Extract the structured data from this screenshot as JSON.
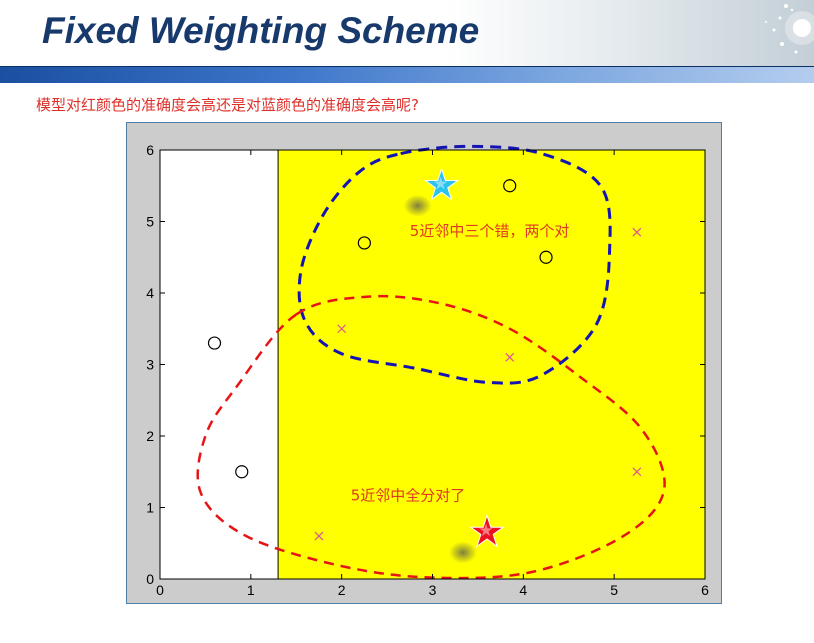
{
  "header": {
    "title": "Fixed Weighting Scheme",
    "subtitle": "模型对红颜色的准确度会高还是对蓝颜色的准确度会高呢?"
  },
  "chart_data": {
    "type": "scatter",
    "xlim": [
      0,
      6
    ],
    "ylim": [
      0,
      6
    ],
    "xticks": [
      "0",
      "1",
      "2",
      "3",
      "4",
      "5",
      "6"
    ],
    "yticks": [
      "0",
      "1",
      "2",
      "3",
      "4",
      "5",
      "6"
    ],
    "grid": false,
    "decision_boundary_x": 1.3,
    "region_colors": {
      "left": "#ffffff",
      "right": "#ffff00"
    },
    "series": [
      {
        "marker": "circle",
        "color": "#000000",
        "points": [
          [
            0.6,
            3.3
          ],
          [
            0.9,
            1.5
          ],
          [
            2.25,
            4.7
          ],
          [
            3.85,
            5.5
          ],
          [
            4.25,
            4.5
          ]
        ]
      },
      {
        "marker": "x",
        "color": "#e0509a",
        "points": [
          [
            2.0,
            3.5
          ],
          [
            3.85,
            3.1
          ],
          [
            5.25,
            4.85
          ],
          [
            5.25,
            1.5
          ],
          [
            1.75,
            0.6
          ]
        ]
      }
    ],
    "query_points": [
      {
        "marker": "star",
        "color": "#29c3ee",
        "point": [
          3.1,
          5.5
        ]
      },
      {
        "marker": "star",
        "color": "#ee1020",
        "point": [
          3.6,
          0.65
        ]
      }
    ],
    "neighborhoods": [
      {
        "color": "#1414b4",
        "style": "dashed"
      },
      {
        "color": "#e61414",
        "style": "dashed"
      }
    ],
    "annotations": [
      {
        "text": "5近邻中三个错，两个对",
        "x": 2.75,
        "y": 4.8,
        "color": "#e03a20"
      },
      {
        "text": "5近邻中全分对了",
        "x": 2.1,
        "y": 1.1,
        "color": "#e03a20"
      }
    ]
  }
}
